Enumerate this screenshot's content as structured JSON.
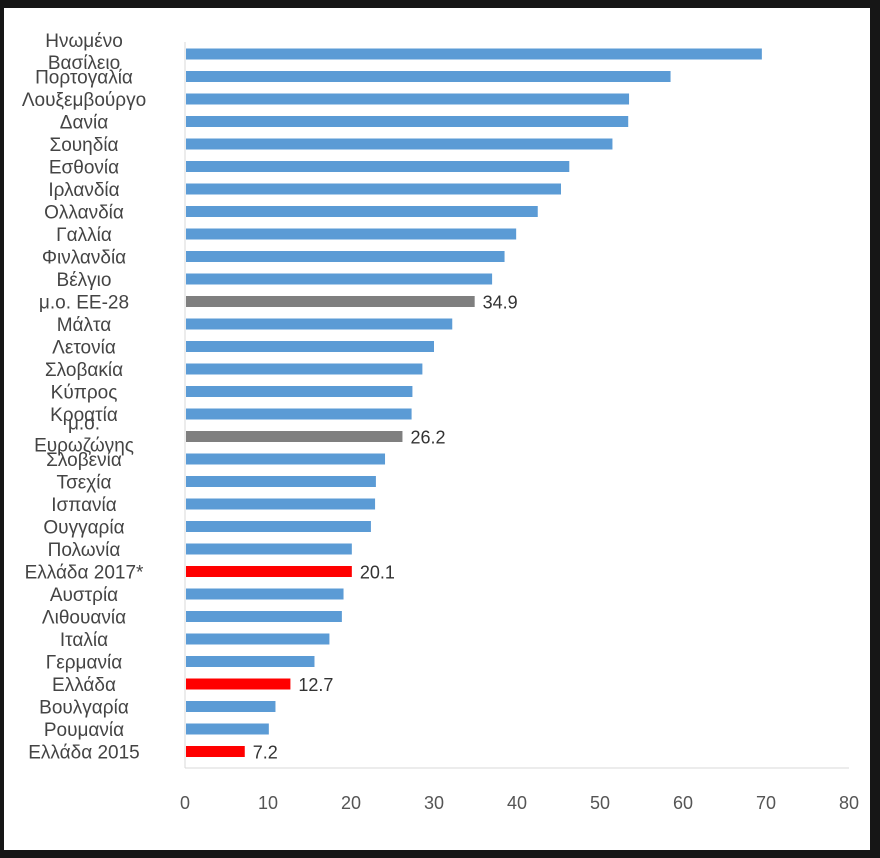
{
  "chart_data": {
    "type": "bar",
    "orientation": "horizontal",
    "title": "",
    "xlabel": "",
    "ylabel": "",
    "xlim": [
      0,
      80
    ],
    "xticks": [
      0,
      10,
      20,
      30,
      40,
      50,
      60,
      70,
      80
    ],
    "grid": false,
    "legend": "none",
    "colors": {
      "country": "#5b9bd5",
      "average": "#7f7f7f",
      "greece": "#ff0000",
      "axis": "#d9d9d9"
    },
    "categories": [
      "Ηνωμένο Βασίλειο",
      "Πορτογαλία",
      "Λουξεμβούργο",
      "Δανία",
      "Σουηδία",
      "Εσθονία",
      "Ιρλανδία",
      "Ολλανδία",
      "Γαλλία",
      "Φινλανδία",
      "Βέλγιο",
      "μ.ο. ΕΕ-28",
      "Μάλτα",
      "Λετονία",
      "Σλοβακία",
      "Κύπρος",
      "Κροατία",
      "μ.ο. Ευρωζώνης",
      "Σλοβενία",
      "Τσεχία",
      "Ισπανία",
      "Ουγγαρία",
      "Πολωνία",
      "Ελλάδα 2017*",
      "Αυστρία",
      "Λιθουανία",
      "Ιταλία",
      "Γερμανία",
      "Ελλάδα",
      "Βουλγαρία",
      "Ρουμανία",
      "Ελλάδα 2015"
    ],
    "values": [
      69.5,
      58.5,
      53.5,
      53.4,
      51.5,
      46.3,
      45.3,
      42.5,
      39.9,
      38.5,
      37.0,
      34.9,
      32.2,
      30.0,
      28.6,
      27.4,
      27.3,
      26.2,
      24.1,
      23.0,
      22.9,
      22.4,
      20.1,
      20.1,
      19.1,
      18.9,
      17.4,
      15.6,
      12.7,
      10.9,
      10.1,
      7.2
    ],
    "groups": [
      "country",
      "country",
      "country",
      "country",
      "country",
      "country",
      "country",
      "country",
      "country",
      "country",
      "country",
      "average",
      "country",
      "country",
      "country",
      "country",
      "country",
      "average",
      "country",
      "country",
      "country",
      "country",
      "country",
      "greece",
      "country",
      "country",
      "country",
      "country",
      "greece",
      "country",
      "country",
      "greece"
    ],
    "data_labels": [
      "",
      "",
      "",
      "",
      "",
      "",
      "",
      "",
      "",
      "",
      "",
      "34.9",
      "",
      "",
      "",
      "",
      "",
      "26.2",
      "",
      "",
      "",
      "",
      "",
      "20.1",
      "",
      "",
      "",
      "",
      "12.7",
      "",
      "",
      "7.2"
    ]
  }
}
